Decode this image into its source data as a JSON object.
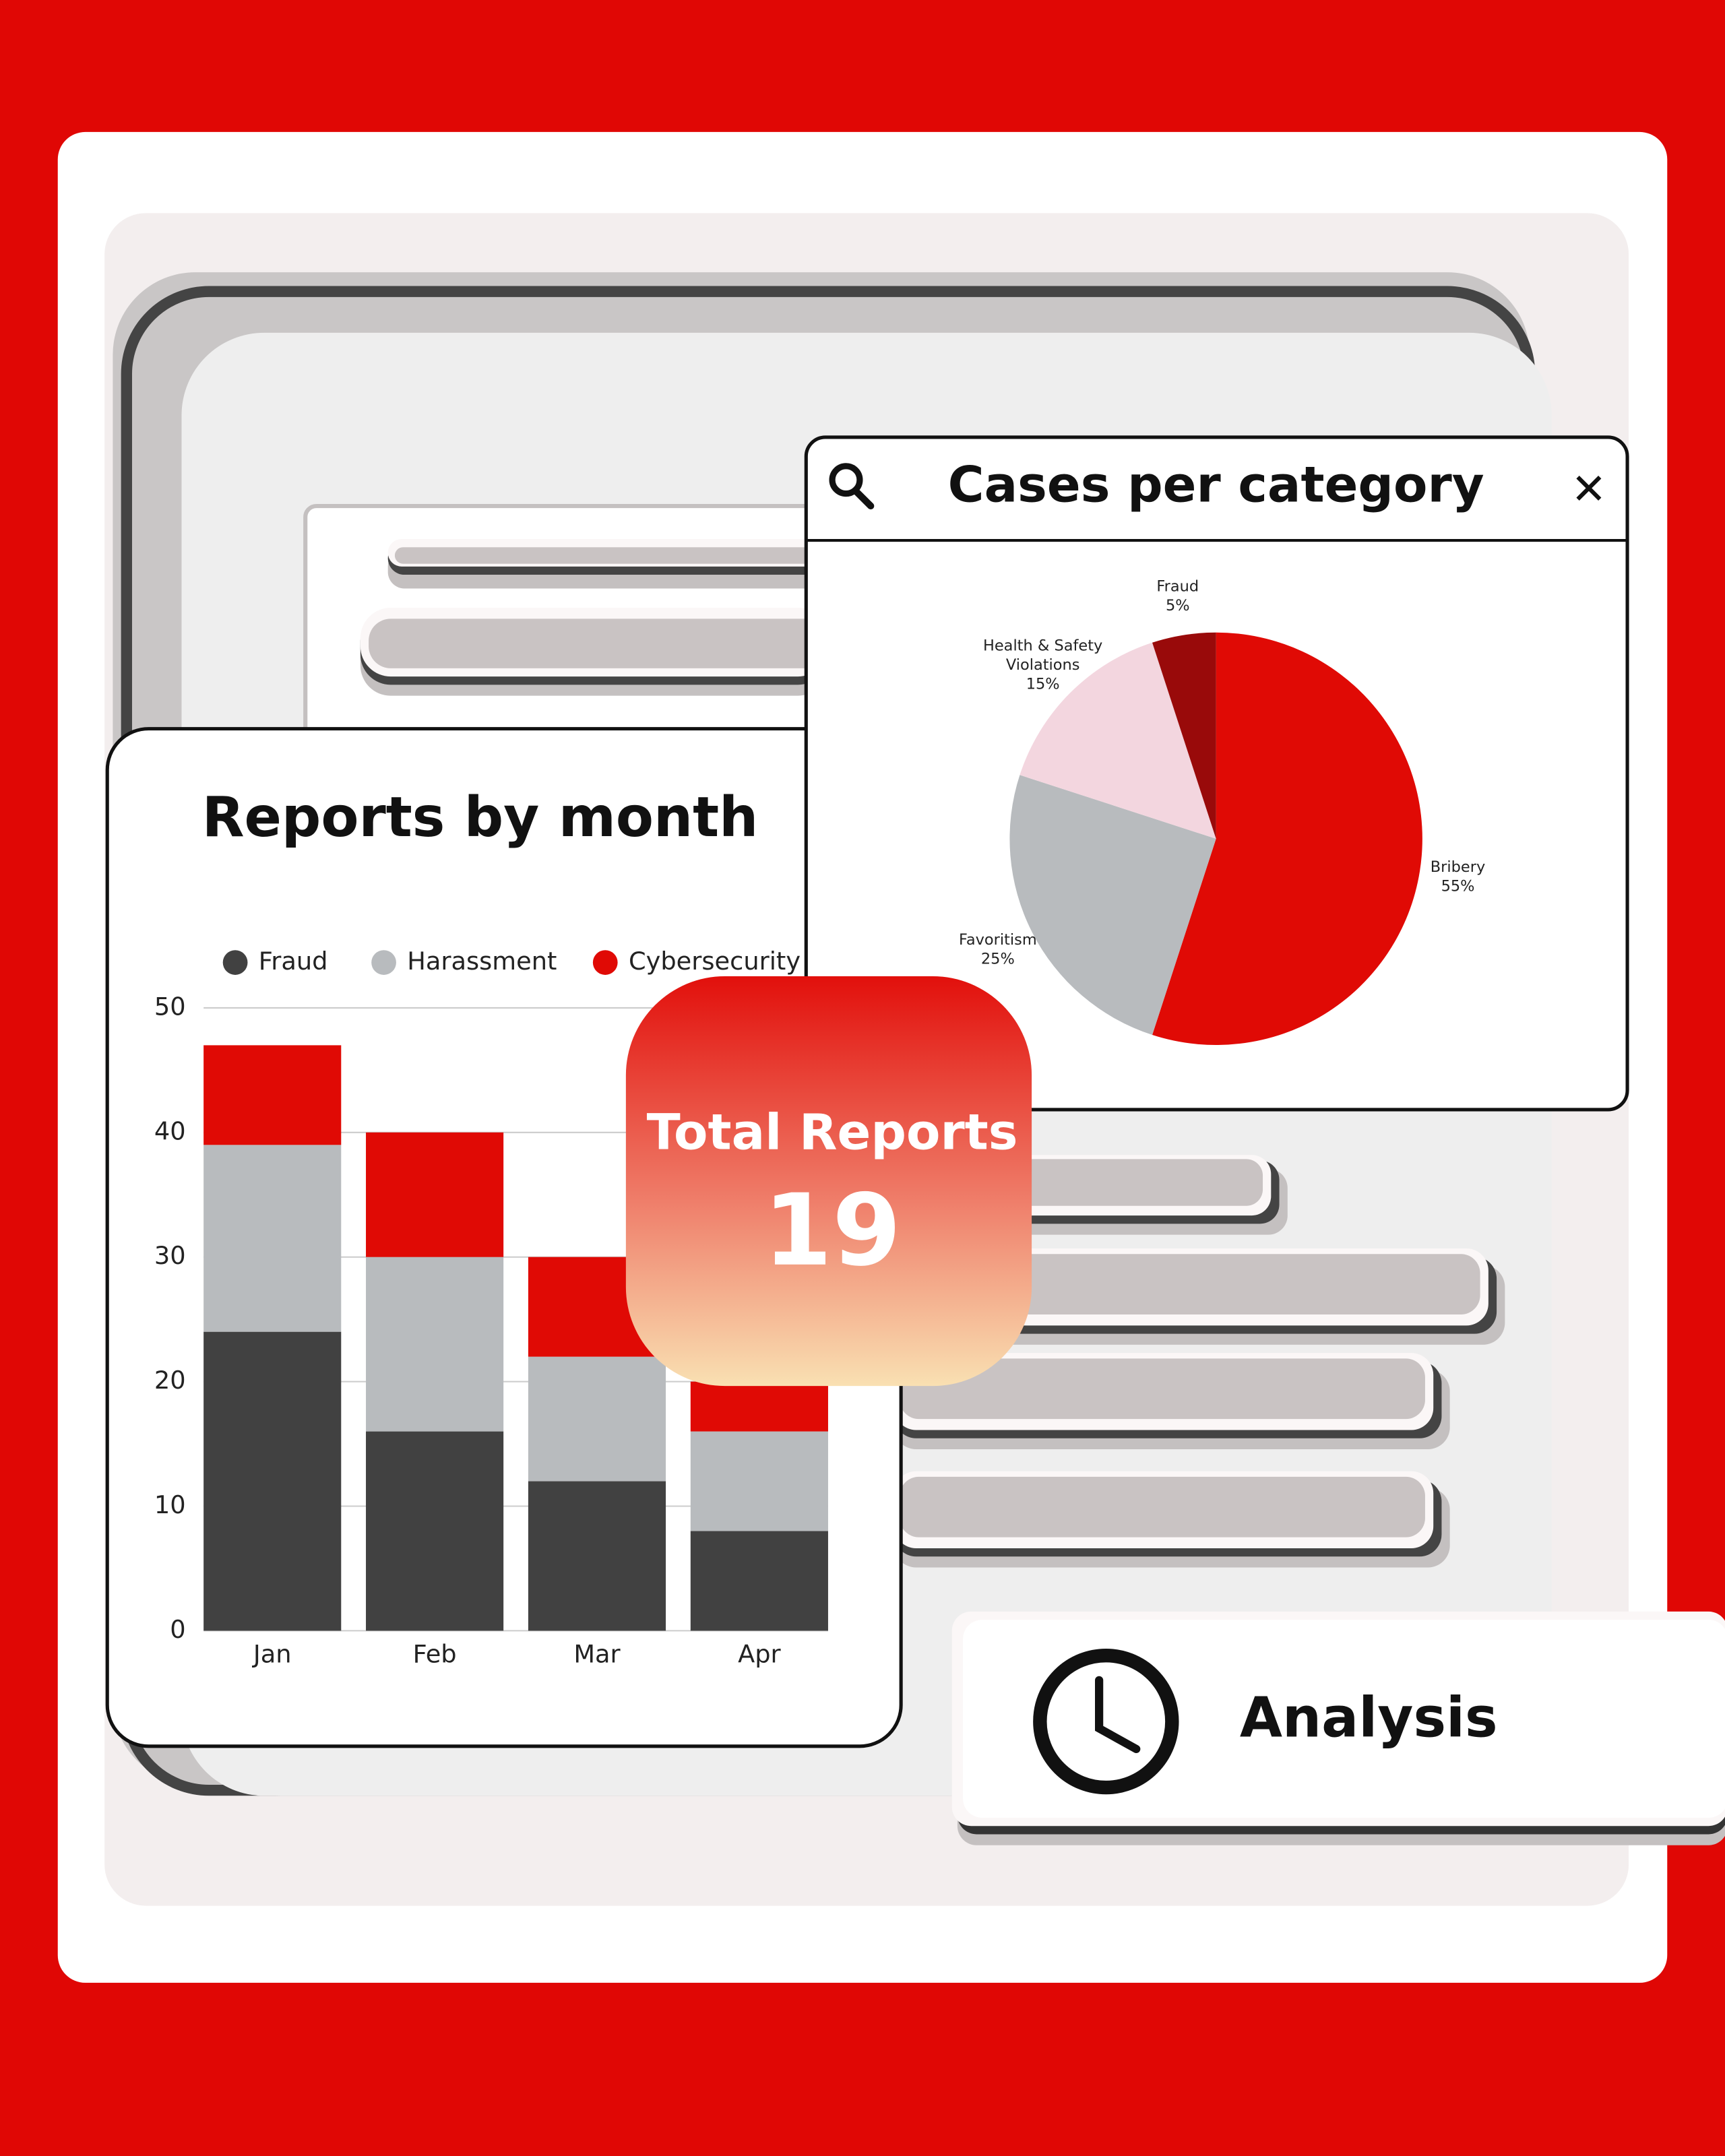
{
  "chart_data": [
    {
      "type": "bar",
      "title": "Reports by month",
      "stacked": true,
      "categories": [
        "Jan",
        "Feb",
        "Mar",
        "Apr"
      ],
      "series": [
        {
          "name": "Fraud",
          "color": "#414141",
          "values": [
            24,
            16,
            12,
            8
          ]
        },
        {
          "name": "Harassment",
          "color": "#b8bbbe",
          "values": [
            15,
            14,
            10,
            8
          ]
        },
        {
          "name": "Cybersecurity",
          "color": "#e00a05",
          "values": [
            8,
            10,
            8,
            4
          ]
        }
      ],
      "ylim": [
        0,
        50
      ],
      "yticks": [
        0,
        10,
        20,
        30,
        40,
        50
      ],
      "grid": true
    },
    {
      "type": "pie",
      "title": "Cases per category",
      "categories": [
        "Bribery",
        "Favoritism",
        "Health & Safety Violations",
        "Fraud"
      ],
      "values": [
        55,
        25,
        15,
        5
      ],
      "value_labels": [
        "55%",
        "25%",
        "15%",
        "5%"
      ],
      "colors": [
        "#e00a05",
        "#b8bbbe",
        "#f3d6df",
        "#990a0a"
      ]
    }
  ],
  "badge": {
    "label": "Total Reports",
    "value": "19"
  },
  "footer": {
    "label": "Analysis"
  }
}
